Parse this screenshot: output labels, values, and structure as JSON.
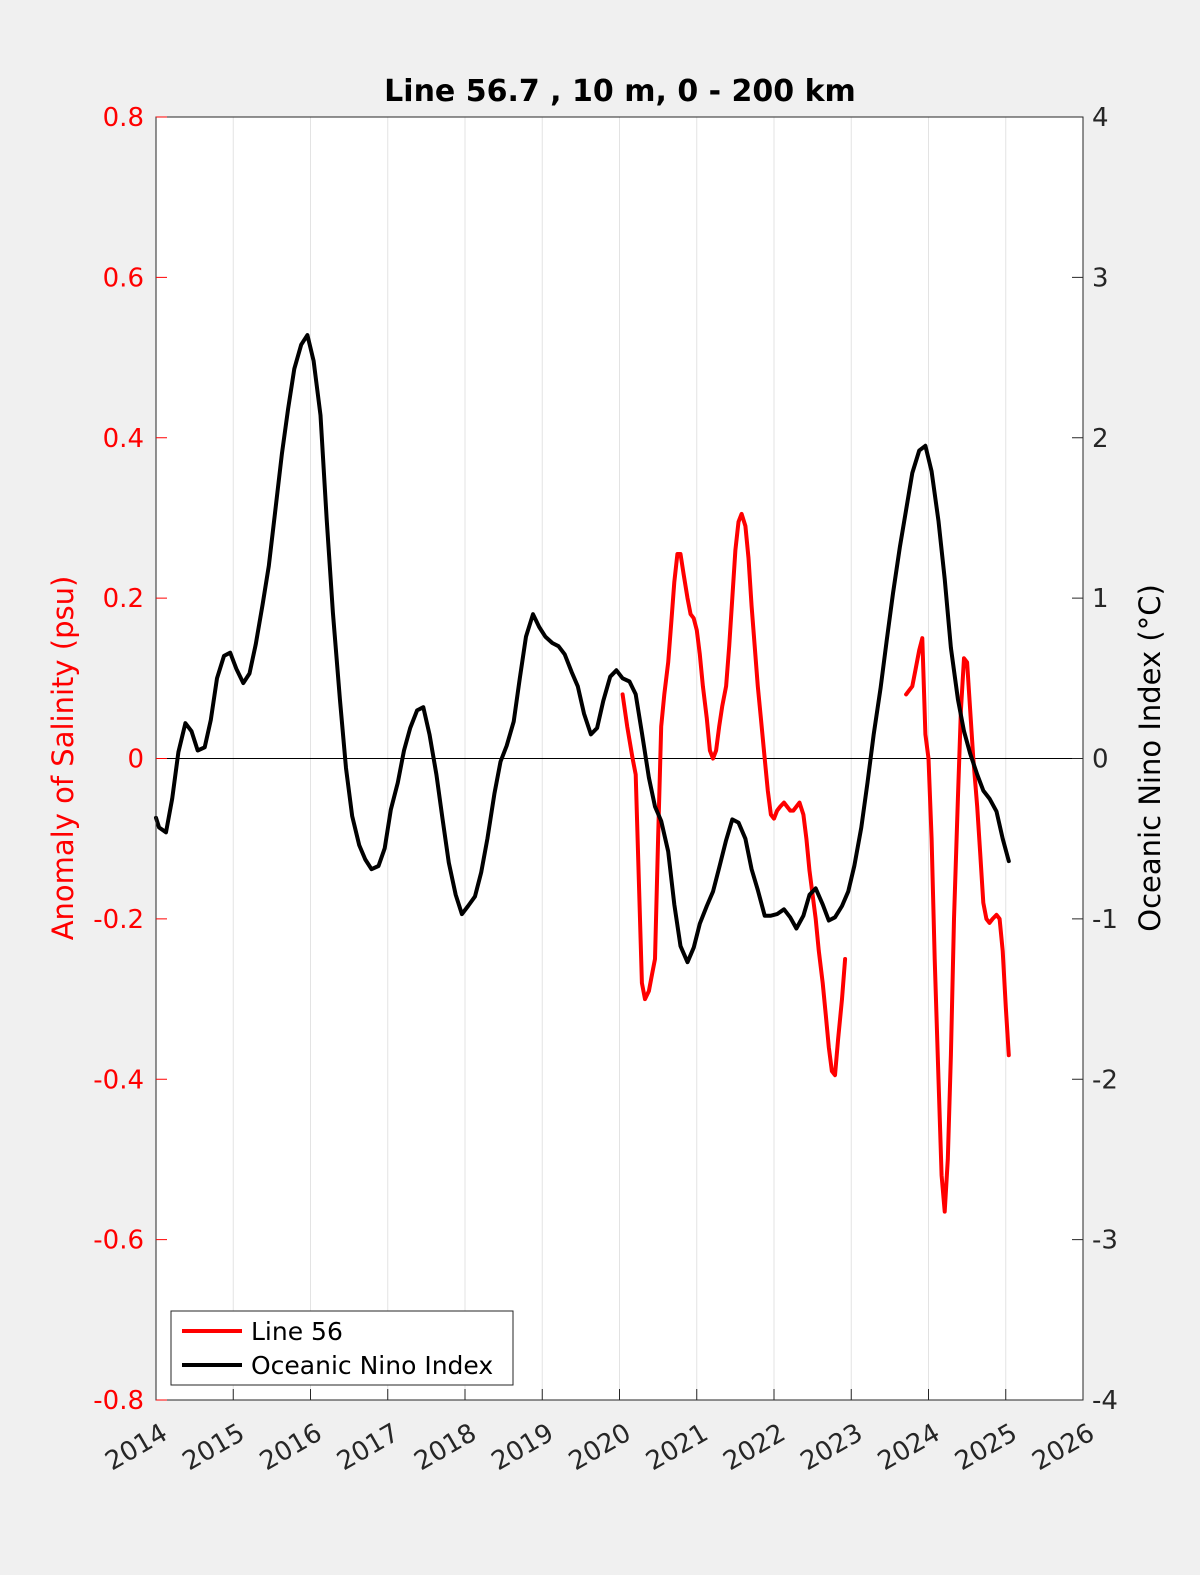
{
  "chart_data": {
    "type": "line",
    "title": "Line 56.7 , 10 m, 0 - 200 km",
    "xlabel": "",
    "ylabel_left": "Anomaly of Salinity (psu)",
    "ylabel_right": "Oceanic Nino Index (°C)",
    "xlim": [
      2014,
      2026
    ],
    "ylim_left": [
      -0.8,
      0.8
    ],
    "ylim_right": [
      -4,
      4
    ],
    "x_ticks": [
      2014,
      2015,
      2016,
      2017,
      2018,
      2019,
      2020,
      2021,
      2022,
      2023,
      2024,
      2025,
      2026
    ],
    "x_tick_labels": [
      "2014",
      "2015",
      "2016",
      "2017",
      "2018",
      "2019",
      "2020",
      "2021",
      "2022",
      "2023",
      "2024",
      "2025",
      "2026"
    ],
    "y_left_ticks": [
      -0.8,
      -0.6,
      -0.4,
      -0.2,
      0,
      0.2,
      0.4,
      0.6,
      0.8
    ],
    "y_left_tick_labels": [
      "-0.8",
      "-0.6",
      "-0.4",
      "-0.2",
      "0",
      "0.2",
      "0.4",
      "0.6",
      "0.8"
    ],
    "y_right_ticks": [
      -4,
      -3,
      -2,
      -1,
      0,
      1,
      2,
      3,
      4
    ],
    "y_right_tick_labels": [
      "-4",
      "-3",
      "-2",
      "-1",
      "0",
      "1",
      "2",
      "3",
      "4"
    ],
    "grid": "vertical",
    "legend_position": "bottom-left",
    "colors": {
      "salinity": "#ff0000",
      "oni": "#000000",
      "background": "#f0f0f0",
      "plot_area": "#ffffff"
    },
    "series": [
      {
        "name": "Line 56",
        "axis": "left",
        "color": "#ff0000",
        "segments": [
          [
            [
              2020.04,
              0.08
            ],
            [
              2020.1,
              0.04
            ],
            [
              2020.17,
              0.0
            ],
            [
              2020.21,
              -0.02
            ],
            [
              2020.25,
              -0.15
            ],
            [
              2020.29,
              -0.28
            ],
            [
              2020.33,
              -0.3
            ],
            [
              2020.38,
              -0.29
            ],
            [
              2020.42,
              -0.27
            ],
            [
              2020.46,
              -0.25
            ],
            [
              2020.5,
              -0.1
            ],
            [
              2020.54,
              0.04
            ],
            [
              2020.58,
              0.08
            ],
            [
              2020.63,
              0.12
            ],
            [
              2020.67,
              0.17
            ],
            [
              2020.71,
              0.22
            ],
            [
              2020.75,
              0.255
            ],
            [
              2020.79,
              0.255
            ],
            [
              2020.83,
              0.23
            ],
            [
              2020.88,
              0.2
            ],
            [
              2020.92,
              0.18
            ],
            [
              2020.96,
              0.175
            ],
            [
              2021.0,
              0.16
            ],
            [
              2021.04,
              0.13
            ],
            [
              2021.08,
              0.09
            ],
            [
              2021.13,
              0.05
            ],
            [
              2021.17,
              0.01
            ],
            [
              2021.21,
              0.0
            ],
            [
              2021.25,
              0.01
            ],
            [
              2021.29,
              0.04
            ],
            [
              2021.33,
              0.065
            ],
            [
              2021.38,
              0.09
            ],
            [
              2021.42,
              0.14
            ],
            [
              2021.46,
              0.2
            ],
            [
              2021.5,
              0.26
            ],
            [
              2021.54,
              0.295
            ],
            [
              2021.58,
              0.305
            ],
            [
              2021.63,
              0.29
            ],
            [
              2021.67,
              0.25
            ],
            [
              2021.71,
              0.19
            ],
            [
              2021.75,
              0.14
            ],
            [
              2021.79,
              0.09
            ],
            [
              2021.83,
              0.05
            ],
            [
              2021.88,
              0.0
            ],
            [
              2021.92,
              -0.04
            ],
            [
              2021.96,
              -0.07
            ],
            [
              2022.0,
              -0.075
            ],
            [
              2022.04,
              -0.065
            ],
            [
              2022.08,
              -0.06
            ],
            [
              2022.13,
              -0.055
            ],
            [
              2022.17,
              -0.06
            ],
            [
              2022.21,
              -0.065
            ],
            [
              2022.25,
              -0.065
            ],
            [
              2022.29,
              -0.06
            ],
            [
              2022.33,
              -0.055
            ],
            [
              2022.38,
              -0.07
            ],
            [
              2022.42,
              -0.1
            ],
            [
              2022.46,
              -0.14
            ],
            [
              2022.5,
              -0.17
            ],
            [
              2022.54,
              -0.2
            ],
            [
              2022.58,
              -0.24
            ],
            [
              2022.63,
              -0.28
            ],
            [
              2022.67,
              -0.32
            ],
            [
              2022.71,
              -0.36
            ],
            [
              2022.75,
              -0.39
            ],
            [
              2022.79,
              -0.395
            ],
            [
              2022.83,
              -0.35
            ],
            [
              2022.88,
              -0.3
            ],
            [
              2022.92,
              -0.25
            ]
          ],
          [
            [
              2023.71,
              0.08
            ],
            [
              2023.75,
              0.085
            ],
            [
              2023.79,
              0.09
            ],
            [
              2023.83,
              0.11
            ],
            [
              2023.88,
              0.135
            ],
            [
              2023.92,
              0.15
            ],
            [
              2023.96,
              0.03
            ],
            [
              2024.0,
              0.0
            ],
            [
              2024.04,
              -0.1
            ],
            [
              2024.08,
              -0.25
            ],
            [
              2024.13,
              -0.4
            ],
            [
              2024.17,
              -0.52
            ],
            [
              2024.21,
              -0.565
            ],
            [
              2024.25,
              -0.5
            ],
            [
              2024.29,
              -0.37
            ],
            [
              2024.33,
              -0.2
            ],
            [
              2024.38,
              -0.05
            ],
            [
              2024.42,
              0.06
            ],
            [
              2024.46,
              0.125
            ],
            [
              2024.5,
              0.12
            ],
            [
              2024.54,
              0.06
            ],
            [
              2024.58,
              0.0
            ],
            [
              2024.63,
              -0.06
            ],
            [
              2024.67,
              -0.12
            ],
            [
              2024.71,
              -0.18
            ],
            [
              2024.75,
              -0.2
            ],
            [
              2024.79,
              -0.205
            ],
            [
              2024.83,
              -0.2
            ],
            [
              2024.88,
              -0.195
            ],
            [
              2024.92,
              -0.2
            ],
            [
              2024.96,
              -0.24
            ],
            [
              2025.0,
              -0.31
            ],
            [
              2025.04,
              -0.37
            ]
          ]
        ]
      },
      {
        "name": "Oceanic Nino Index",
        "axis": "right",
        "color": "#000000",
        "segments": [
          [
            [
              2014.0,
              -0.37
            ],
            [
              2014.04,
              -0.43
            ],
            [
              2014.13,
              -0.46
            ],
            [
              2014.21,
              -0.25
            ],
            [
              2014.29,
              0.04
            ],
            [
              2014.38,
              0.22
            ],
            [
              2014.46,
              0.17
            ],
            [
              2014.54,
              0.05
            ],
            [
              2014.63,
              0.07
            ],
            [
              2014.71,
              0.24
            ],
            [
              2014.79,
              0.5
            ],
            [
              2014.88,
              0.64
            ],
            [
              2014.96,
              0.66
            ],
            [
              2015.04,
              0.56
            ],
            [
              2015.13,
              0.47
            ],
            [
              2015.21,
              0.53
            ],
            [
              2015.29,
              0.71
            ],
            [
              2015.38,
              0.96
            ],
            [
              2015.46,
              1.2
            ],
            [
              2015.54,
              1.53
            ],
            [
              2015.63,
              1.9
            ],
            [
              2015.71,
              2.18
            ],
            [
              2015.79,
              2.43
            ],
            [
              2015.88,
              2.58
            ],
            [
              2015.96,
              2.64
            ],
            [
              2016.04,
              2.48
            ],
            [
              2016.13,
              2.14
            ],
            [
              2016.21,
              1.49
            ],
            [
              2016.29,
              0.91
            ],
            [
              2016.38,
              0.37
            ],
            [
              2016.46,
              -0.06
            ],
            [
              2016.54,
              -0.36
            ],
            [
              2016.63,
              -0.54
            ],
            [
              2016.71,
              -0.63
            ],
            [
              2016.79,
              -0.69
            ],
            [
              2016.88,
              -0.67
            ],
            [
              2016.96,
              -0.56
            ],
            [
              2017.04,
              -0.32
            ],
            [
              2017.13,
              -0.15
            ],
            [
              2017.21,
              0.05
            ],
            [
              2017.29,
              0.19
            ],
            [
              2017.38,
              0.3
            ],
            [
              2017.46,
              0.32
            ],
            [
              2017.54,
              0.15
            ],
            [
              2017.63,
              -0.1
            ],
            [
              2017.71,
              -0.38
            ],
            [
              2017.79,
              -0.65
            ],
            [
              2017.88,
              -0.85
            ],
            [
              2017.96,
              -0.97
            ],
            [
              2018.04,
              -0.92
            ],
            [
              2018.13,
              -0.86
            ],
            [
              2018.21,
              -0.71
            ],
            [
              2018.29,
              -0.5
            ],
            [
              2018.38,
              -0.22
            ],
            [
              2018.46,
              -0.02
            ],
            [
              2018.54,
              0.08
            ],
            [
              2018.63,
              0.23
            ],
            [
              2018.71,
              0.5
            ],
            [
              2018.79,
              0.76
            ],
            [
              2018.88,
              0.9
            ],
            [
              2018.96,
              0.82
            ],
            [
              2019.04,
              0.76
            ],
            [
              2019.13,
              0.72
            ],
            [
              2019.21,
              0.7
            ],
            [
              2019.29,
              0.65
            ],
            [
              2019.38,
              0.54
            ],
            [
              2019.46,
              0.45
            ],
            [
              2019.54,
              0.28
            ],
            [
              2019.63,
              0.15
            ],
            [
              2019.71,
              0.19
            ],
            [
              2019.79,
              0.36
            ],
            [
              2019.88,
              0.51
            ],
            [
              2019.96,
              0.55
            ],
            [
              2020.04,
              0.5
            ],
            [
              2020.13,
              0.48
            ],
            [
              2020.21,
              0.4
            ],
            [
              2020.29,
              0.16
            ],
            [
              2020.38,
              -0.12
            ],
            [
              2020.46,
              -0.3
            ],
            [
              2020.54,
              -0.39
            ],
            [
              2020.63,
              -0.58
            ],
            [
              2020.71,
              -0.91
            ],
            [
              2020.79,
              -1.17
            ],
            [
              2020.88,
              -1.27
            ],
            [
              2020.96,
              -1.18
            ],
            [
              2021.04,
              -1.03
            ],
            [
              2021.13,
              -0.92
            ],
            [
              2021.21,
              -0.83
            ],
            [
              2021.29,
              -0.68
            ],
            [
              2021.38,
              -0.51
            ],
            [
              2021.46,
              -0.38
            ],
            [
              2021.54,
              -0.4
            ],
            [
              2021.63,
              -0.5
            ],
            [
              2021.71,
              -0.69
            ],
            [
              2021.79,
              -0.82
            ],
            [
              2021.88,
              -0.98
            ],
            [
              2021.96,
              -0.98
            ],
            [
              2022.04,
              -0.97
            ],
            [
              2022.13,
              -0.94
            ],
            [
              2022.21,
              -0.99
            ],
            [
              2022.29,
              -1.06
            ],
            [
              2022.38,
              -0.98
            ],
            [
              2022.46,
              -0.85
            ],
            [
              2022.54,
              -0.81
            ],
            [
              2022.63,
              -0.91
            ],
            [
              2022.71,
              -1.01
            ],
            [
              2022.79,
              -0.99
            ],
            [
              2022.88,
              -0.92
            ],
            [
              2022.96,
              -0.83
            ],
            [
              2023.04,
              -0.67
            ],
            [
              2023.13,
              -0.43
            ],
            [
              2023.21,
              -0.15
            ],
            [
              2023.29,
              0.15
            ],
            [
              2023.38,
              0.44
            ],
            [
              2023.46,
              0.74
            ],
            [
              2023.54,
              1.03
            ],
            [
              2023.63,
              1.32
            ],
            [
              2023.71,
              1.55
            ],
            [
              2023.79,
              1.78
            ],
            [
              2023.88,
              1.92
            ],
            [
              2023.96,
              1.95
            ],
            [
              2024.04,
              1.79
            ],
            [
              2024.13,
              1.48
            ],
            [
              2024.21,
              1.12
            ],
            [
              2024.29,
              0.69
            ],
            [
              2024.38,
              0.37
            ],
            [
              2024.46,
              0.17
            ],
            [
              2024.54,
              0.03
            ],
            [
              2024.63,
              -0.1
            ],
            [
              2024.71,
              -0.2
            ],
            [
              2024.79,
              -0.25
            ],
            [
              2024.88,
              -0.33
            ],
            [
              2024.96,
              -0.5
            ],
            [
              2025.04,
              -0.64
            ]
          ]
        ]
      }
    ]
  }
}
